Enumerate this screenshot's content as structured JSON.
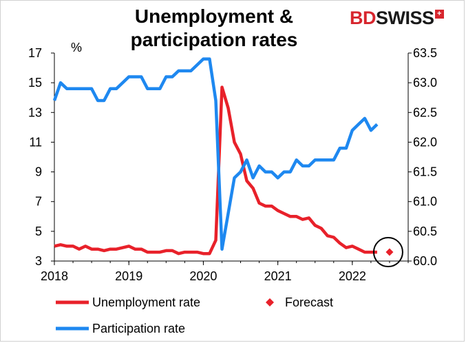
{
  "logo": {
    "brand_red": "BD",
    "brand_dark": "SWISS",
    "mark": "+"
  },
  "colors": {
    "unemployment": "#e8212a",
    "participation": "#1e88f0",
    "forecast": "#e8212a",
    "circle": "#000000"
  },
  "chart_data": {
    "type": "line",
    "title": "Unemployment & participation rates",
    "title_lines": [
      "Unemployment &",
      "participation rates"
    ],
    "left_axis_unit": "%",
    "x_range": [
      2018,
      2022.75
    ],
    "x_ticks": [
      "2018",
      "2019",
      "2020",
      "2021",
      "2022"
    ],
    "y_left": {
      "range": [
        3,
        17
      ],
      "ticks": [
        "3",
        "5",
        "7",
        "9",
        "11",
        "13",
        "15",
        "17"
      ]
    },
    "y_right": {
      "range": [
        60.0,
        63.5
      ],
      "ticks": [
        "60.0",
        "60.5",
        "61.0",
        "61.5",
        "62.0",
        "62.5",
        "63.0",
        "63.5"
      ]
    },
    "series": [
      {
        "name": "Unemployment rate",
        "axis": "left",
        "values": [
          [
            2018.0,
            4.0
          ],
          [
            2018.083,
            4.1
          ],
          [
            2018.167,
            4.0
          ],
          [
            2018.25,
            4.0
          ],
          [
            2018.333,
            3.8
          ],
          [
            2018.417,
            4.0
          ],
          [
            2018.5,
            3.8
          ],
          [
            2018.583,
            3.8
          ],
          [
            2018.667,
            3.7
          ],
          [
            2018.75,
            3.8
          ],
          [
            2018.833,
            3.8
          ],
          [
            2018.917,
            3.9
          ],
          [
            2019.0,
            4.0
          ],
          [
            2019.083,
            3.8
          ],
          [
            2019.167,
            3.8
          ],
          [
            2019.25,
            3.6
          ],
          [
            2019.333,
            3.6
          ],
          [
            2019.417,
            3.6
          ],
          [
            2019.5,
            3.7
          ],
          [
            2019.583,
            3.7
          ],
          [
            2019.667,
            3.5
          ],
          [
            2019.75,
            3.6
          ],
          [
            2019.833,
            3.6
          ],
          [
            2019.917,
            3.6
          ],
          [
            2020.0,
            3.5
          ],
          [
            2020.083,
            3.5
          ],
          [
            2020.167,
            4.4
          ],
          [
            2020.25,
            14.7
          ],
          [
            2020.333,
            13.3
          ],
          [
            2020.417,
            11.0
          ],
          [
            2020.5,
            10.2
          ],
          [
            2020.583,
            8.4
          ],
          [
            2020.667,
            7.9
          ],
          [
            2020.75,
            6.9
          ],
          [
            2020.833,
            6.7
          ],
          [
            2020.917,
            6.7
          ],
          [
            2021.0,
            6.4
          ],
          [
            2021.083,
            6.2
          ],
          [
            2021.167,
            6.0
          ],
          [
            2021.25,
            6.0
          ],
          [
            2021.333,
            5.8
          ],
          [
            2021.417,
            5.9
          ],
          [
            2021.5,
            5.4
          ],
          [
            2021.583,
            5.2
          ],
          [
            2021.667,
            4.7
          ],
          [
            2021.75,
            4.6
          ],
          [
            2021.833,
            4.2
          ],
          [
            2021.917,
            3.9
          ],
          [
            2022.0,
            4.0
          ],
          [
            2022.083,
            3.8
          ],
          [
            2022.167,
            3.6
          ],
          [
            2022.25,
            3.6
          ],
          [
            2022.333,
            3.6
          ]
        ]
      },
      {
        "name": "Participation rate",
        "axis": "right",
        "values": [
          [
            2018.0,
            62.7
          ],
          [
            2018.083,
            63.0
          ],
          [
            2018.167,
            62.9
          ],
          [
            2018.25,
            62.9
          ],
          [
            2018.333,
            62.9
          ],
          [
            2018.417,
            62.9
          ],
          [
            2018.5,
            62.9
          ],
          [
            2018.583,
            62.7
          ],
          [
            2018.667,
            62.7
          ],
          [
            2018.75,
            62.9
          ],
          [
            2018.833,
            62.9
          ],
          [
            2018.917,
            63.0
          ],
          [
            2019.0,
            63.1
          ],
          [
            2019.083,
            63.1
          ],
          [
            2019.167,
            63.1
          ],
          [
            2019.25,
            62.9
          ],
          [
            2019.333,
            62.9
          ],
          [
            2019.417,
            62.9
          ],
          [
            2019.5,
            63.1
          ],
          [
            2019.583,
            63.1
          ],
          [
            2019.667,
            63.2
          ],
          [
            2019.75,
            63.2
          ],
          [
            2019.833,
            63.2
          ],
          [
            2019.917,
            63.3
          ],
          [
            2020.0,
            63.4
          ],
          [
            2020.083,
            63.4
          ],
          [
            2020.167,
            62.7
          ],
          [
            2020.25,
            60.2
          ],
          [
            2020.333,
            60.8
          ],
          [
            2020.417,
            61.4
          ],
          [
            2020.5,
            61.5
          ],
          [
            2020.583,
            61.7
          ],
          [
            2020.667,
            61.4
          ],
          [
            2020.75,
            61.6
          ],
          [
            2020.833,
            61.5
          ],
          [
            2020.917,
            61.5
          ],
          [
            2021.0,
            61.4
          ],
          [
            2021.083,
            61.5
          ],
          [
            2021.167,
            61.5
          ],
          [
            2021.25,
            61.7
          ],
          [
            2021.333,
            61.6
          ],
          [
            2021.417,
            61.6
          ],
          [
            2021.5,
            61.7
          ],
          [
            2021.583,
            61.7
          ],
          [
            2021.667,
            61.7
          ],
          [
            2021.75,
            61.7
          ],
          [
            2021.833,
            61.9
          ],
          [
            2021.917,
            61.9
          ],
          [
            2022.0,
            62.2
          ],
          [
            2022.083,
            62.3
          ],
          [
            2022.167,
            62.4
          ],
          [
            2022.25,
            62.2
          ],
          [
            2022.333,
            62.3
          ]
        ]
      },
      {
        "name": "Forecast",
        "axis": "left",
        "marker": "diamond",
        "values": [
          [
            2022.5,
            3.6
          ]
        ]
      }
    ],
    "legend": {
      "placement": "bottom",
      "items": [
        "Unemployment rate",
        "Forecast",
        "Participation rate"
      ]
    },
    "annotation": "circle around forecast point",
    "grid": false
  }
}
